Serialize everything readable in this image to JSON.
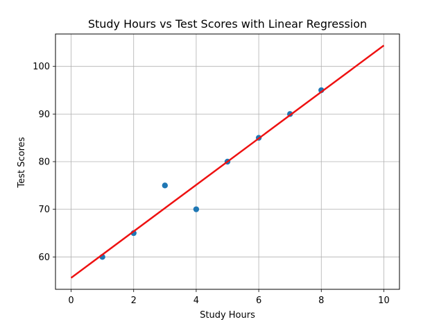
{
  "chart_data": {
    "type": "scatter",
    "title": "Study Hours vs Test Scores with Linear Regression",
    "xlabel": "Study Hours",
    "ylabel": "Test Scores",
    "xlim": [
      -0.5,
      10.5
    ],
    "ylim": [
      53.2,
      106.8
    ],
    "xticks": [
      0,
      2,
      4,
      6,
      8,
      10
    ],
    "yticks": [
      60,
      70,
      80,
      90,
      100
    ],
    "grid": true,
    "series": [
      {
        "kind": "scatter",
        "color": "#1f77b4",
        "x": [
          1,
          2,
          3,
          4,
          5,
          6,
          7,
          8
        ],
        "y": [
          60,
          65,
          75,
          70,
          80,
          85,
          90,
          95
        ]
      },
      {
        "kind": "line",
        "color": "#ee1111",
        "x": [
          0,
          10
        ],
        "y": [
          55.6,
          104.4
        ]
      }
    ]
  }
}
